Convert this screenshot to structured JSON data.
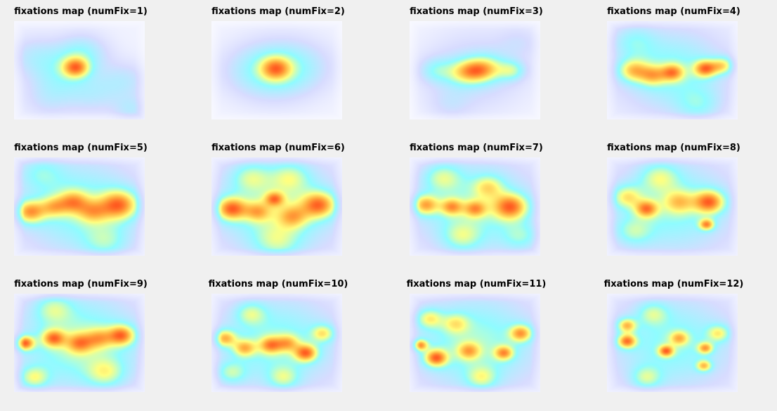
{
  "figure": {
    "background": "#f0f0f0"
  },
  "chart_data": [
    {
      "type": "heatmap",
      "title": "fixations map (numFix=1)",
      "colormap": [
        "#ffffff",
        "#d8dcff",
        "#8ffcff",
        "#ffff80",
        "#ffb040",
        "#ff5a20"
      ],
      "hotspots": [
        {
          "x": 0.47,
          "y": 0.47,
          "intensity": 1.0,
          "spread": 0.07
        },
        {
          "x": 0.52,
          "y": 0.32,
          "intensity": 0.45,
          "spread": 0.14
        },
        {
          "x": 0.35,
          "y": 0.55,
          "intensity": 0.35,
          "spread": 0.16
        },
        {
          "x": 0.15,
          "y": 0.35,
          "intensity": 0.3,
          "spread": 0.15
        },
        {
          "x": 0.85,
          "y": 0.6,
          "intensity": 0.3,
          "spread": 0.14
        },
        {
          "x": 0.6,
          "y": 0.75,
          "intensity": 0.28,
          "spread": 0.15
        },
        {
          "x": 0.25,
          "y": 0.8,
          "intensity": 0.22,
          "spread": 0.14
        },
        {
          "x": 0.9,
          "y": 0.9,
          "intensity": 0.3,
          "spread": 0.1
        }
      ]
    },
    {
      "type": "heatmap",
      "title": "fixations map (numFix=2)",
      "colormap": [
        "#ffffff",
        "#d8dcff",
        "#8ffcff",
        "#ffff80",
        "#ffb040",
        "#ff5a20"
      ],
      "hotspots": [
        {
          "x": 0.49,
          "y": 0.48,
          "intensity": 1.0,
          "spread": 0.08
        },
        {
          "x": 0.5,
          "y": 0.5,
          "intensity": 0.5,
          "spread": 0.22
        },
        {
          "x": 0.3,
          "y": 0.5,
          "intensity": 0.25,
          "spread": 0.2
        },
        {
          "x": 0.7,
          "y": 0.45,
          "intensity": 0.25,
          "spread": 0.2
        }
      ]
    },
    {
      "type": "heatmap",
      "title": "fixations map (numFix=3)",
      "colormap": [
        "#ffffff",
        "#d8dcff",
        "#8ffcff",
        "#ffff80",
        "#ffb040",
        "#ff5a20"
      ],
      "hotspots": [
        {
          "x": 0.5,
          "y": 0.5,
          "intensity": 0.95,
          "spread": 0.08
        },
        {
          "x": 0.6,
          "y": 0.48,
          "intensity": 0.85,
          "spread": 0.09
        },
        {
          "x": 0.4,
          "y": 0.52,
          "intensity": 0.75,
          "spread": 0.09
        },
        {
          "x": 0.78,
          "y": 0.5,
          "intensity": 0.75,
          "spread": 0.07
        },
        {
          "x": 0.2,
          "y": 0.5,
          "intensity": 0.55,
          "spread": 0.09
        },
        {
          "x": 0.5,
          "y": 0.5,
          "intensity": 0.55,
          "spread": 0.3
        },
        {
          "x": 0.85,
          "y": 0.2,
          "intensity": 0.25,
          "spread": 0.12
        },
        {
          "x": 0.3,
          "y": 0.85,
          "intensity": 0.25,
          "spread": 0.12
        }
      ]
    },
    {
      "type": "heatmap",
      "title": "fixations map (numFix=4)",
      "colormap": [
        "#ffffff",
        "#d8dcff",
        "#8ffcff",
        "#ffff80",
        "#ffb040",
        "#ff5a20"
      ],
      "hotspots": [
        {
          "x": 0.75,
          "y": 0.48,
          "intensity": 0.95,
          "spread": 0.06
        },
        {
          "x": 0.5,
          "y": 0.52,
          "intensity": 0.75,
          "spread": 0.06
        },
        {
          "x": 0.2,
          "y": 0.5,
          "intensity": 0.7,
          "spread": 0.08
        },
        {
          "x": 0.35,
          "y": 0.55,
          "intensity": 0.6,
          "spread": 0.07
        },
        {
          "x": 0.88,
          "y": 0.45,
          "intensity": 0.65,
          "spread": 0.06
        },
        {
          "x": 0.5,
          "y": 0.5,
          "intensity": 0.5,
          "spread": 0.3
        },
        {
          "x": 0.2,
          "y": 0.2,
          "intensity": 0.3,
          "spread": 0.12
        },
        {
          "x": 0.7,
          "y": 0.85,
          "intensity": 0.3,
          "spread": 0.12
        }
      ]
    },
    {
      "type": "heatmap",
      "title": "fixations map (numFix=5)",
      "colormap": [
        "#ffffff",
        "#d8dcff",
        "#8ffcff",
        "#ffff80",
        "#ffb040",
        "#ff5a20"
      ],
      "hotspots": [
        {
          "x": 0.8,
          "y": 0.48,
          "intensity": 1.0,
          "spread": 0.1
        },
        {
          "x": 0.12,
          "y": 0.55,
          "intensity": 0.9,
          "spread": 0.08
        },
        {
          "x": 0.45,
          "y": 0.45,
          "intensity": 0.7,
          "spread": 0.08
        },
        {
          "x": 0.3,
          "y": 0.5,
          "intensity": 0.55,
          "spread": 0.07
        },
        {
          "x": 0.6,
          "y": 0.55,
          "intensity": 0.55,
          "spread": 0.08
        },
        {
          "x": 0.5,
          "y": 0.5,
          "intensity": 0.55,
          "spread": 0.35
        },
        {
          "x": 0.2,
          "y": 0.15,
          "intensity": 0.3,
          "spread": 0.12
        },
        {
          "x": 0.7,
          "y": 0.85,
          "intensity": 0.35,
          "spread": 0.12
        }
      ]
    },
    {
      "type": "heatmap",
      "title": "fixations map (numFix=6)",
      "colormap": [
        "#ffffff",
        "#d8dcff",
        "#8ffcff",
        "#ffff80",
        "#ffb040",
        "#ff5a20"
      ],
      "hotspots": [
        {
          "x": 0.15,
          "y": 0.52,
          "intensity": 0.95,
          "spread": 0.08
        },
        {
          "x": 0.82,
          "y": 0.48,
          "intensity": 0.9,
          "spread": 0.09
        },
        {
          "x": 0.48,
          "y": 0.42,
          "intensity": 0.7,
          "spread": 0.05
        },
        {
          "x": 0.35,
          "y": 0.55,
          "intensity": 0.55,
          "spread": 0.07
        },
        {
          "x": 0.62,
          "y": 0.6,
          "intensity": 0.55,
          "spread": 0.08
        },
        {
          "x": 0.5,
          "y": 0.5,
          "intensity": 0.55,
          "spread": 0.35
        },
        {
          "x": 0.3,
          "y": 0.2,
          "intensity": 0.35,
          "spread": 0.1
        },
        {
          "x": 0.6,
          "y": 0.2,
          "intensity": 0.35,
          "spread": 0.1
        },
        {
          "x": 0.5,
          "y": 0.85,
          "intensity": 0.35,
          "spread": 0.12
        }
      ]
    },
    {
      "type": "heatmap",
      "title": "fixations map (numFix=7)",
      "colormap": [
        "#ffffff",
        "#d8dcff",
        "#8ffcff",
        "#ffff80",
        "#ffb040",
        "#ff5a20"
      ],
      "hotspots": [
        {
          "x": 0.77,
          "y": 0.5,
          "intensity": 1.0,
          "spread": 0.09
        },
        {
          "x": 0.12,
          "y": 0.48,
          "intensity": 0.85,
          "spread": 0.07
        },
        {
          "x": 0.32,
          "y": 0.5,
          "intensity": 0.75,
          "spread": 0.06
        },
        {
          "x": 0.5,
          "y": 0.52,
          "intensity": 0.7,
          "spread": 0.06
        },
        {
          "x": 0.6,
          "y": 0.3,
          "intensity": 0.5,
          "spread": 0.08
        },
        {
          "x": 0.5,
          "y": 0.5,
          "intensity": 0.55,
          "spread": 0.35
        },
        {
          "x": 0.25,
          "y": 0.2,
          "intensity": 0.45,
          "spread": 0.1
        },
        {
          "x": 0.4,
          "y": 0.8,
          "intensity": 0.4,
          "spread": 0.1
        },
        {
          "x": 0.85,
          "y": 0.8,
          "intensity": 0.35,
          "spread": 0.1
        }
      ]
    },
    {
      "type": "heatmap",
      "title": "fixations map (numFix=8)",
      "colormap": [
        "#ffffff",
        "#d8dcff",
        "#8ffcff",
        "#ffff80",
        "#ffb040",
        "#ff5a20"
      ],
      "hotspots": [
        {
          "x": 0.78,
          "y": 0.45,
          "intensity": 0.95,
          "spread": 0.08
        },
        {
          "x": 0.76,
          "y": 0.68,
          "intensity": 0.85,
          "spread": 0.04
        },
        {
          "x": 0.3,
          "y": 0.52,
          "intensity": 0.8,
          "spread": 0.06
        },
        {
          "x": 0.15,
          "y": 0.4,
          "intensity": 0.55,
          "spread": 0.08
        },
        {
          "x": 0.55,
          "y": 0.45,
          "intensity": 0.5,
          "spread": 0.08
        },
        {
          "x": 0.5,
          "y": 0.5,
          "intensity": 0.5,
          "spread": 0.35
        },
        {
          "x": 0.4,
          "y": 0.2,
          "intensity": 0.4,
          "spread": 0.1
        },
        {
          "x": 0.2,
          "y": 0.75,
          "intensity": 0.35,
          "spread": 0.1
        }
      ]
    },
    {
      "type": "heatmap",
      "title": "fixations map (numFix=9)",
      "colormap": [
        "#ffffff",
        "#d8dcff",
        "#8ffcff",
        "#ffff80",
        "#ffb040",
        "#ff5a20"
      ],
      "hotspots": [
        {
          "x": 0.08,
          "y": 0.5,
          "intensity": 0.95,
          "spread": 0.05
        },
        {
          "x": 0.82,
          "y": 0.42,
          "intensity": 0.85,
          "spread": 0.07
        },
        {
          "x": 0.3,
          "y": 0.45,
          "intensity": 0.75,
          "spread": 0.06
        },
        {
          "x": 0.5,
          "y": 0.5,
          "intensity": 0.6,
          "spread": 0.07
        },
        {
          "x": 0.65,
          "y": 0.45,
          "intensity": 0.5,
          "spread": 0.07
        },
        {
          "x": 0.5,
          "y": 0.5,
          "intensity": 0.55,
          "spread": 0.35
        },
        {
          "x": 0.15,
          "y": 0.85,
          "intensity": 0.5,
          "spread": 0.08
        },
        {
          "x": 0.3,
          "y": 0.15,
          "intensity": 0.35,
          "spread": 0.1
        },
        {
          "x": 0.7,
          "y": 0.8,
          "intensity": 0.4,
          "spread": 0.1
        }
      ]
    },
    {
      "type": "heatmap",
      "title": "fixations map (numFix=10)",
      "colormap": [
        "#ffffff",
        "#d8dcff",
        "#8ffcff",
        "#ffff80",
        "#ffb040",
        "#ff5a20"
      ],
      "hotspots": [
        {
          "x": 0.72,
          "y": 0.6,
          "intensity": 0.9,
          "spread": 0.06
        },
        {
          "x": 0.1,
          "y": 0.45,
          "intensity": 0.75,
          "spread": 0.06
        },
        {
          "x": 0.25,
          "y": 0.55,
          "intensity": 0.65,
          "spread": 0.06
        },
        {
          "x": 0.45,
          "y": 0.52,
          "intensity": 0.7,
          "spread": 0.06
        },
        {
          "x": 0.58,
          "y": 0.5,
          "intensity": 0.55,
          "spread": 0.06
        },
        {
          "x": 0.85,
          "y": 0.4,
          "intensity": 0.55,
          "spread": 0.06
        },
        {
          "x": 0.5,
          "y": 0.5,
          "intensity": 0.5,
          "spread": 0.35
        },
        {
          "x": 0.3,
          "y": 0.2,
          "intensity": 0.4,
          "spread": 0.08
        },
        {
          "x": 0.15,
          "y": 0.8,
          "intensity": 0.4,
          "spread": 0.08
        },
        {
          "x": 0.55,
          "y": 0.85,
          "intensity": 0.4,
          "spread": 0.08
        }
      ]
    },
    {
      "type": "heatmap",
      "title": "fixations map (numFix=11)",
      "colormap": [
        "#ffffff",
        "#d8dcff",
        "#8ffcff",
        "#ffff80",
        "#ffb040",
        "#ff5a20"
      ],
      "hotspots": [
        {
          "x": 0.2,
          "y": 0.65,
          "intensity": 0.9,
          "spread": 0.06
        },
        {
          "x": 0.08,
          "y": 0.52,
          "intensity": 0.8,
          "spread": 0.04
        },
        {
          "x": 0.85,
          "y": 0.4,
          "intensity": 0.75,
          "spread": 0.06
        },
        {
          "x": 0.72,
          "y": 0.6,
          "intensity": 0.7,
          "spread": 0.05
        },
        {
          "x": 0.45,
          "y": 0.58,
          "intensity": 0.55,
          "spread": 0.06
        },
        {
          "x": 0.5,
          "y": 0.5,
          "intensity": 0.5,
          "spread": 0.35
        },
        {
          "x": 0.15,
          "y": 0.25,
          "intensity": 0.5,
          "spread": 0.07
        },
        {
          "x": 0.35,
          "y": 0.3,
          "intensity": 0.4,
          "spread": 0.07
        },
        {
          "x": 0.55,
          "y": 0.85,
          "intensity": 0.4,
          "spread": 0.08
        }
      ]
    },
    {
      "type": "heatmap",
      "title": "fixations map (numFix=12)",
      "colormap": [
        "#ffffff",
        "#d8dcff",
        "#8ffcff",
        "#ffff80",
        "#ffb040",
        "#ff5a20"
      ],
      "hotspots": [
        {
          "x": 0.15,
          "y": 0.48,
          "intensity": 0.9,
          "spread": 0.05
        },
        {
          "x": 0.15,
          "y": 0.32,
          "intensity": 0.7,
          "spread": 0.05
        },
        {
          "x": 0.45,
          "y": 0.58,
          "intensity": 0.8,
          "spread": 0.04
        },
        {
          "x": 0.75,
          "y": 0.55,
          "intensity": 0.7,
          "spread": 0.04
        },
        {
          "x": 0.74,
          "y": 0.73,
          "intensity": 0.65,
          "spread": 0.04
        },
        {
          "x": 0.55,
          "y": 0.45,
          "intensity": 0.55,
          "spread": 0.05
        },
        {
          "x": 0.85,
          "y": 0.4,
          "intensity": 0.5,
          "spread": 0.06
        },
        {
          "x": 0.5,
          "y": 0.5,
          "intensity": 0.45,
          "spread": 0.35
        },
        {
          "x": 0.3,
          "y": 0.85,
          "intensity": 0.4,
          "spread": 0.08
        },
        {
          "x": 0.35,
          "y": 0.2,
          "intensity": 0.35,
          "spread": 0.08
        }
      ]
    }
  ]
}
